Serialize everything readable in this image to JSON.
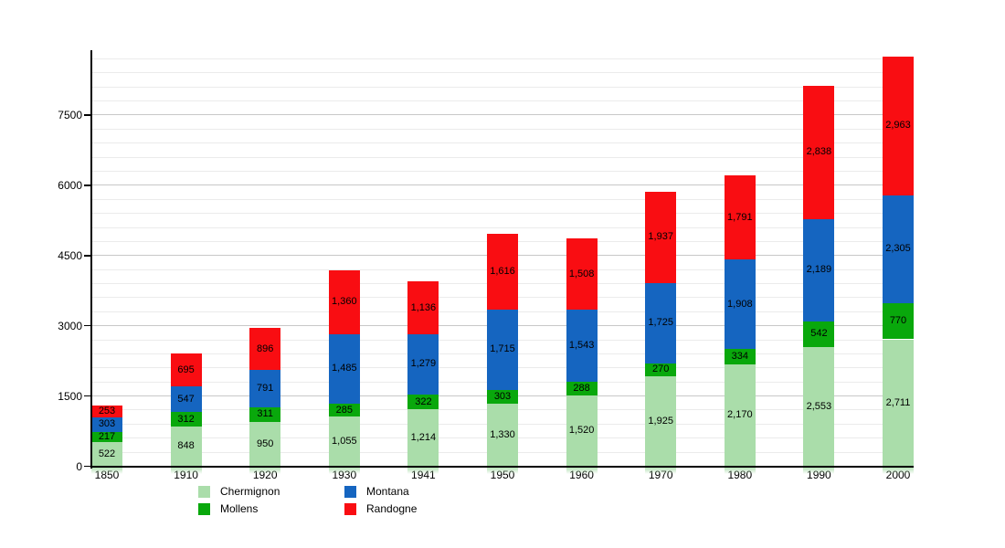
{
  "chart_data": {
    "type": "bar",
    "stacked": true,
    "title": "",
    "xlabel": "",
    "ylabel": "",
    "categories": [
      "1850",
      "1910",
      "1920",
      "1930",
      "1941",
      "1950",
      "1960",
      "1970",
      "1980",
      "1990",
      "2000"
    ],
    "series": [
      {
        "name": "Chermignon",
        "color": "#aaddaa",
        "values": [
          522,
          848,
          950,
          1055,
          1214,
          1330,
          1520,
          1925,
          2170,
          2553,
          2711
        ]
      },
      {
        "name": "Mollens",
        "color": "#09a80c",
        "values": [
          217,
          312,
          311,
          285,
          322,
          303,
          288,
          270,
          334,
          542,
          770
        ]
      },
      {
        "name": "Montana",
        "color": "#1565c0",
        "values": [
          303,
          547,
          791,
          1485,
          1279,
          1715,
          1543,
          1725,
          1908,
          2189,
          2305
        ]
      },
      {
        "name": "Randogne",
        "color": "#f90d12",
        "values": [
          253,
          695,
          896,
          1360,
          1136,
          1616,
          1508,
          1937,
          1791,
          2838,
          2963
        ]
      }
    ],
    "y_axis": {
      "tick_labels": [
        "0",
        "1500",
        "3000",
        "4500",
        "6000",
        "7500"
      ],
      "tick_values": [
        0,
        1500,
        3000,
        4500,
        6000,
        7500
      ],
      "minor_step": 300,
      "minor_max": 8700,
      "ymax": 8884
    },
    "legend": {
      "position": "bottom",
      "columns": 2,
      "entries": [
        "Chermignon",
        "Mollens",
        "Montana",
        "Randogne"
      ]
    },
    "grid": {
      "on": true,
      "major_color": "#c8c8c8",
      "minor_color": "#ebebeb"
    },
    "axis_color": "#000000",
    "label_color": "#000000",
    "value_label_format": "thousands-comma"
  }
}
